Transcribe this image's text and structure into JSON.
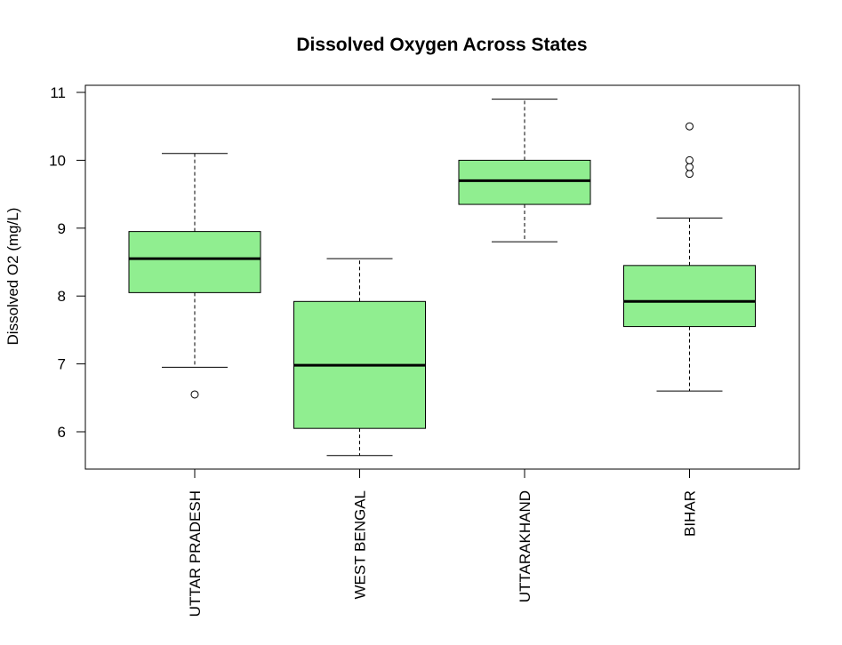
{
  "chart_data": {
    "type": "boxplot",
    "title": "Dissolved Oxygen Across States",
    "xlabel": "",
    "ylabel": "Dissolved O2 (mg/L)",
    "ylim": [
      5.45,
      11.1
    ],
    "yticks": [
      6,
      7,
      8,
      9,
      10,
      11
    ],
    "grid": false,
    "box_color": "#90ee90",
    "categories": [
      "UTTAR PRADESH",
      "WEST BENGAL",
      "UTTARAKHAND",
      "BIHAR"
    ],
    "boxes": [
      {
        "category": "UTTAR PRADESH",
        "whisker_low": 6.95,
        "q1": 8.05,
        "median": 8.55,
        "q3": 8.95,
        "whisker_high": 10.1,
        "outliers": [
          6.55
        ]
      },
      {
        "category": "WEST BENGAL",
        "whisker_low": 5.65,
        "q1": 6.05,
        "median": 6.98,
        "q3": 7.92,
        "whisker_high": 8.55,
        "outliers": []
      },
      {
        "category": "UTTARAKHAND",
        "whisker_low": 8.8,
        "q1": 9.35,
        "median": 9.7,
        "q3": 10.0,
        "whisker_high": 10.9,
        "outliers": []
      },
      {
        "category": "BIHAR",
        "whisker_low": 6.6,
        "q1": 7.55,
        "median": 7.92,
        "q3": 8.45,
        "whisker_high": 9.15,
        "outliers": [
          9.8,
          9.9,
          10.0,
          10.5
        ]
      }
    ]
  }
}
